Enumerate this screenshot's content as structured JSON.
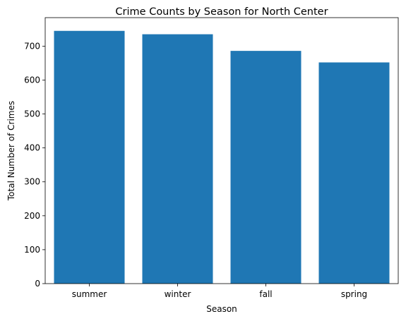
{
  "chart_data": {
    "type": "bar",
    "title": "Crime Counts by Season for North Center",
    "xlabel": "Season",
    "ylabel": "Total Number of Crimes",
    "categories": [
      "summer",
      "winter",
      "fall",
      "spring"
    ],
    "values": [
      745,
      735,
      686,
      652
    ],
    "ylim": [
      0,
      784
    ],
    "yticks": [
      0,
      100,
      200,
      300,
      400,
      500,
      600,
      700
    ],
    "grid": false,
    "bar_color": "#1f77b4"
  }
}
